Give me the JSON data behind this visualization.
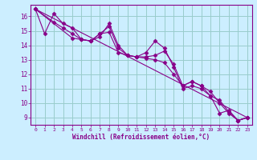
{
  "xlabel": "Windchill (Refroidissement éolien,°C)",
  "xlim": [
    -0.5,
    23.5
  ],
  "ylim": [
    8.5,
    16.8
  ],
  "bg_color": "#cceeff",
  "line_color": "#880088",
  "grid_color": "#99cccc",
  "lines": [
    {
      "x": [
        0,
        1,
        2,
        3,
        4,
        5,
        6,
        7,
        8,
        9,
        10,
        11,
        12,
        13,
        14,
        15,
        16,
        17,
        18,
        19,
        20,
        21,
        22,
        23
      ],
      "y": [
        16.5,
        14.8,
        16.2,
        15.5,
        15.2,
        14.4,
        14.3,
        14.6,
        15.5,
        14.0,
        13.3,
        13.2,
        13.5,
        14.3,
        13.8,
        12.5,
        11.0,
        11.2,
        11.0,
        10.5,
        9.3,
        9.5,
        8.8,
        9.0
      ]
    },
    {
      "x": [
        0,
        2,
        3,
        4,
        5,
        6,
        7,
        8,
        9,
        10,
        11,
        12,
        13,
        14,
        15,
        16,
        17,
        18,
        19,
        20,
        21,
        22,
        23
      ],
      "y": [
        16.5,
        15.6,
        15.2,
        14.8,
        14.4,
        14.3,
        14.8,
        14.9,
        13.5,
        13.3,
        13.2,
        13.2,
        13.3,
        13.6,
        12.7,
        11.2,
        11.5,
        11.2,
        10.8,
        10.0,
        9.3,
        8.8,
        9.0
      ]
    },
    {
      "x": [
        0,
        23
      ],
      "y": [
        16.5,
        9.0
      ]
    },
    {
      "x": [
        0,
        4,
        5,
        6,
        7,
        8,
        9,
        10,
        11,
        12,
        13,
        14,
        15,
        16,
        17,
        18,
        19,
        20,
        21,
        22,
        23
      ],
      "y": [
        16.5,
        14.5,
        14.4,
        14.3,
        14.8,
        15.3,
        13.8,
        13.3,
        13.2,
        13.1,
        13.0,
        12.8,
        12.0,
        11.2,
        11.5,
        11.2,
        10.5,
        10.2,
        9.4,
        8.8,
        9.0
      ]
    }
  ]
}
